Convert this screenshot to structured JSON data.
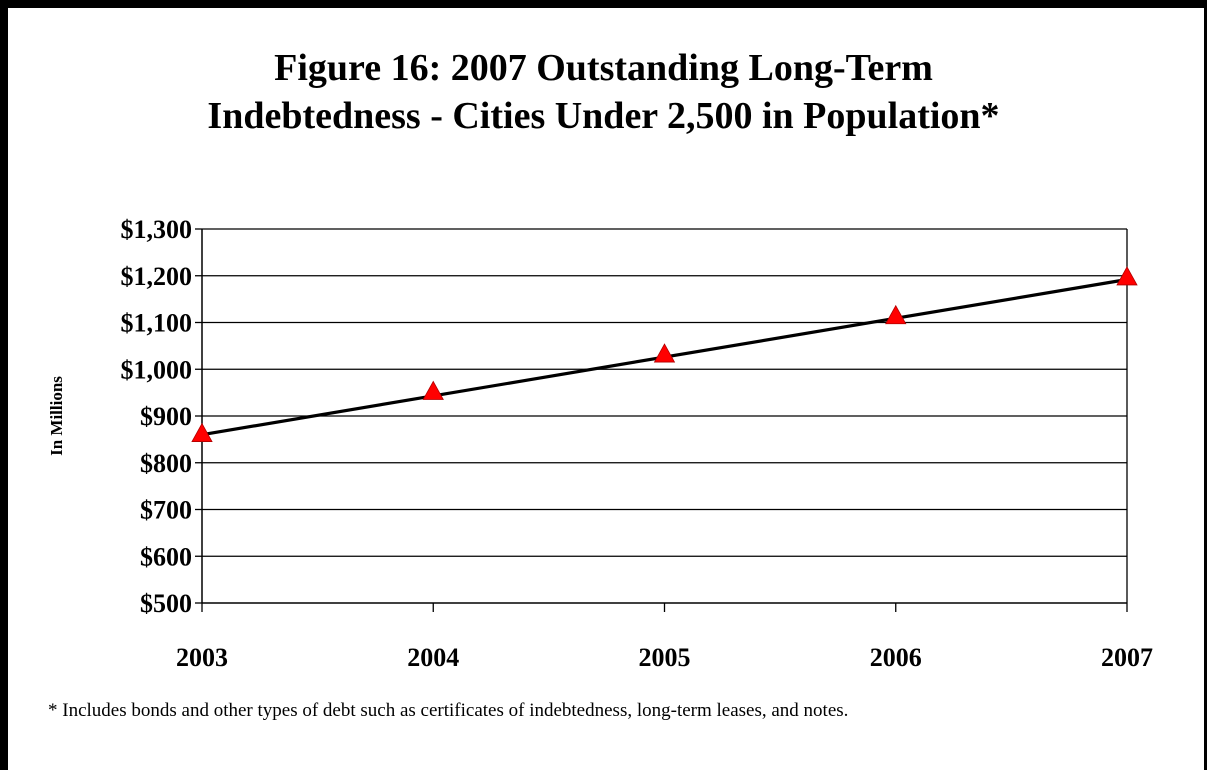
{
  "title_line1": "Figure 16:  2007 Outstanding Long-Term",
  "title_line2": "Indebtedness - Cities Under 2,500 in Population*",
  "footnote": "* Includes bonds and other types of debt such as certificates of indebtedness, long-term leases, and notes.",
  "chart_data": {
    "type": "line",
    "title": "Figure 16:  2007 Outstanding Long-Term Indebtedness - Cities Under 2,500 in Population*",
    "ylabel": "In Millions",
    "xlabel": "",
    "categories": [
      "2003",
      "2004",
      "2005",
      "2006",
      "2007"
    ],
    "series": [
      {
        "values": [
          860,
          950,
          1030,
          1112,
          1195
        ],
        "marker": "triangle",
        "marker_color": "#ff0000"
      }
    ],
    "trendline": {
      "start": 860,
      "end": 1192,
      "color": "#000000"
    },
    "ylim": [
      500,
      1300
    ],
    "y_ticks": [
      500,
      600,
      700,
      800,
      900,
      1000,
      1100,
      1200,
      1300
    ],
    "y_tick_labels": [
      "$500",
      "$600",
      "$700",
      "$800",
      "$900",
      "$1,000",
      "$1,100",
      "$1,200",
      "$1,300"
    ],
    "grid": true,
    "legend": "none"
  }
}
